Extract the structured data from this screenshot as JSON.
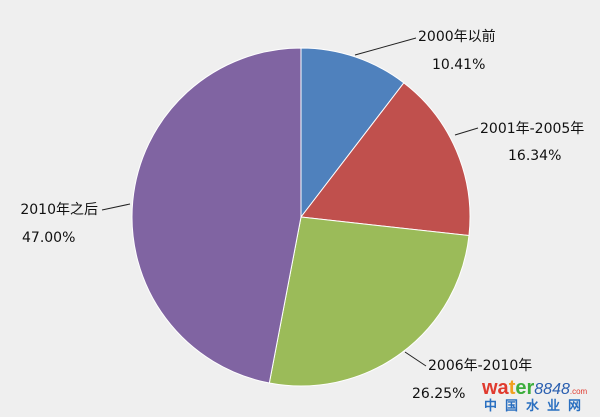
{
  "chart_data": {
    "type": "pie",
    "start_angle": "top",
    "direction": "clockwise",
    "slices": [
      {
        "label": "2000年以前",
        "value": 10.41,
        "value_label": "10.41%",
        "color": "#4f81bd"
      },
      {
        "label": "2001年-2005年",
        "value": 16.34,
        "value_label": "16.34%",
        "color": "#c0504d"
      },
      {
        "label": "2006年-2010年",
        "value": 26.25,
        "value_label": "26.25%",
        "color": "#9bbb59"
      },
      {
        "label": "2010年之后",
        "value": 47.0,
        "value_label": "47.00%",
        "color": "#8064a2"
      }
    ]
  },
  "watermark": {
    "brand_a": "wa",
    "brand_b": "t",
    "brand_c": "er",
    "brand_num": "8848",
    "brand_tld": ".com",
    "brand_cn": "中国水业网"
  }
}
